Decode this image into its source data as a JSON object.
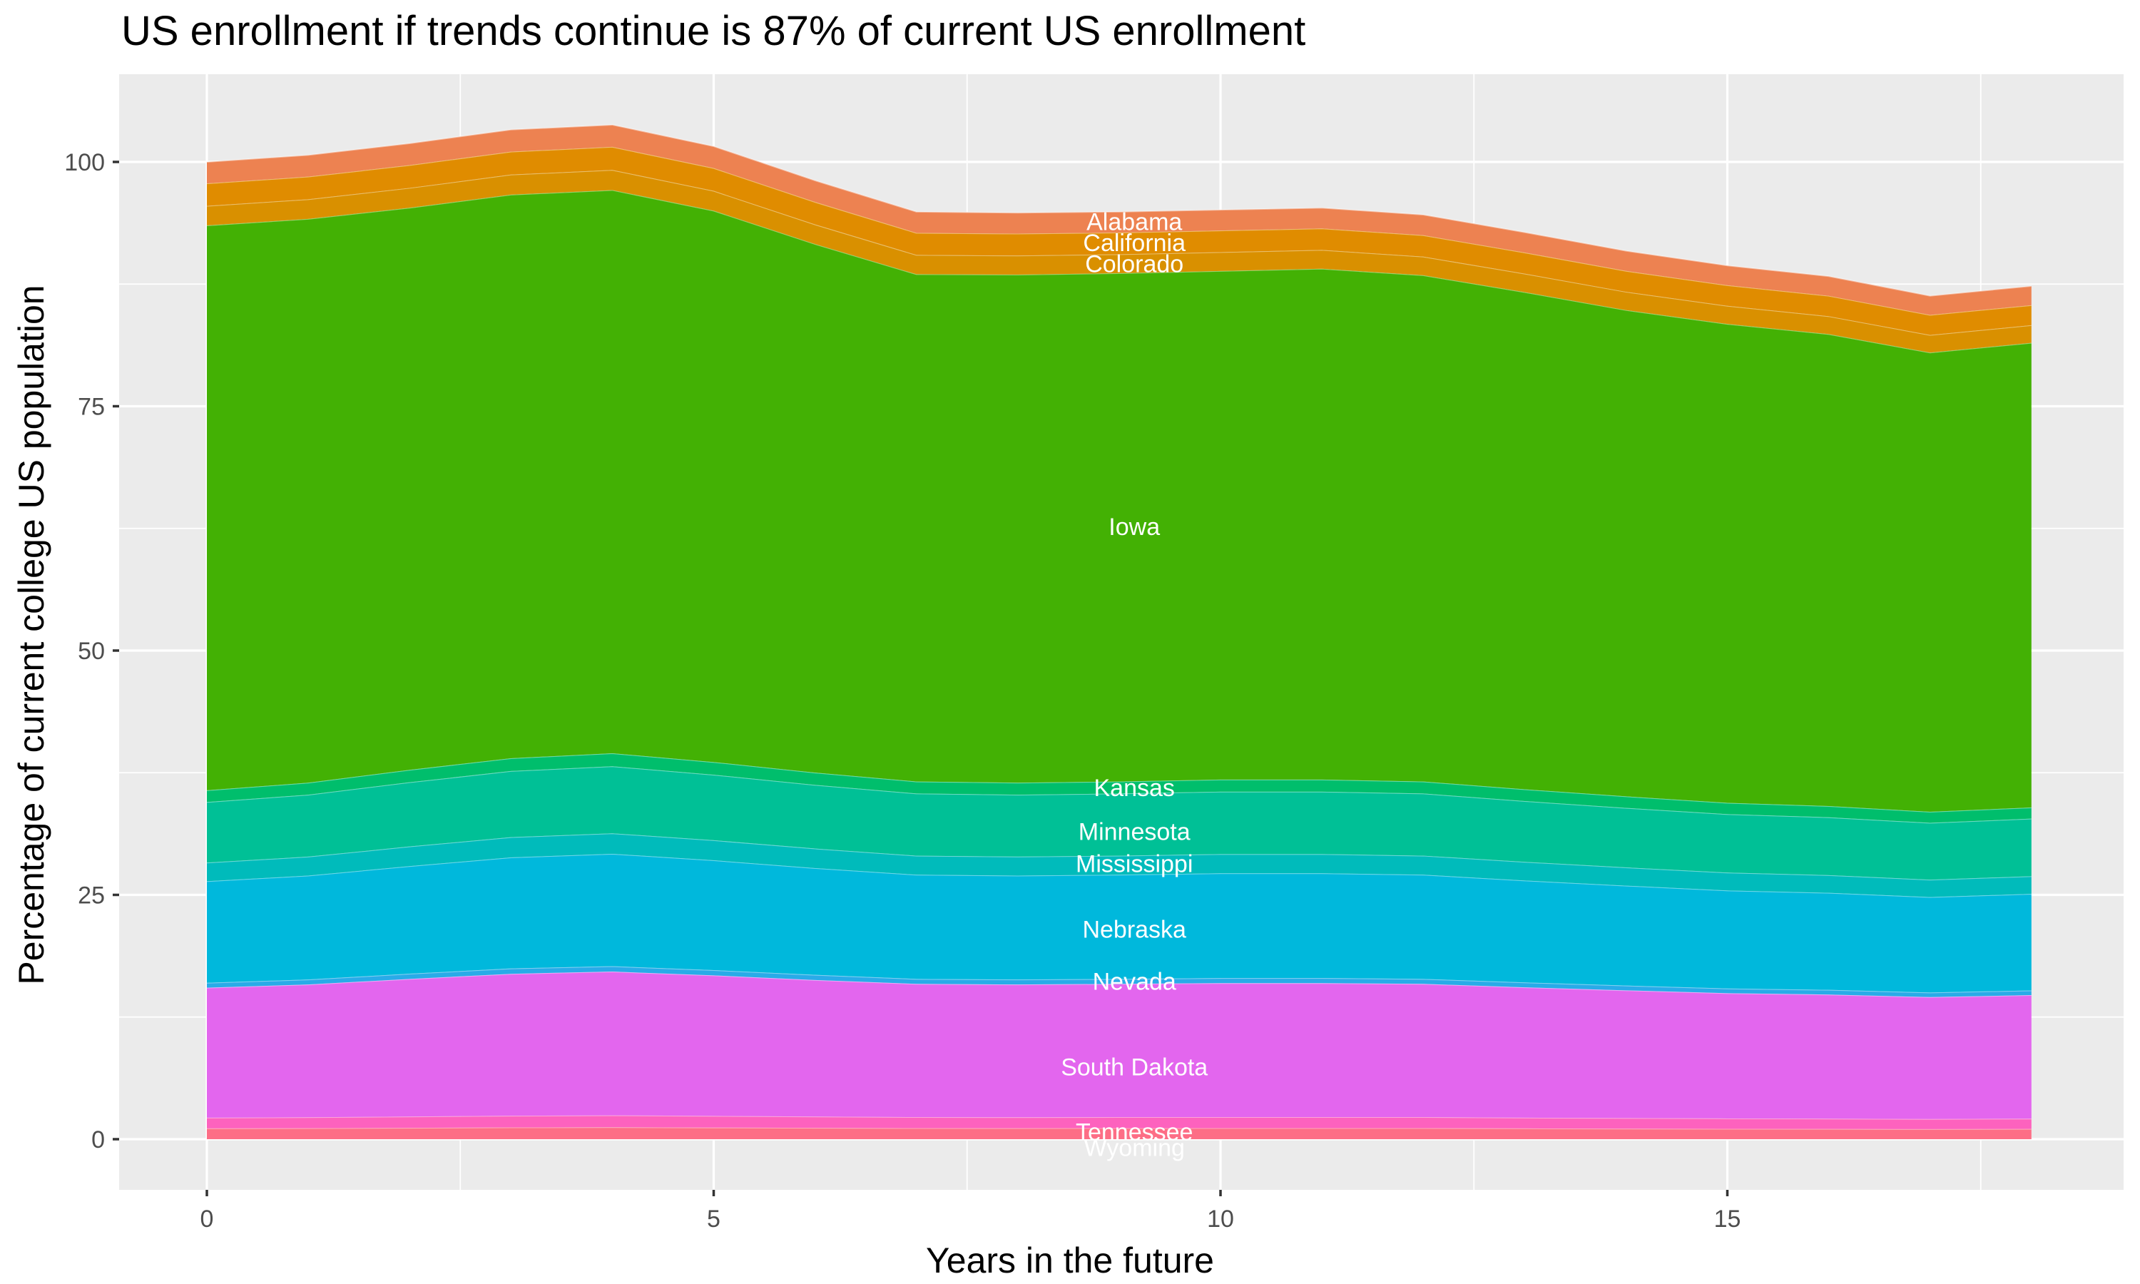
{
  "title": "US enrollment if trends continue is 87% of current US enrollment",
  "axes": {
    "x": {
      "label": "Years in the future",
      "tick_labels": [
        "0",
        "5",
        "10",
        "15"
      ],
      "ticks": [
        0,
        5,
        10,
        15
      ],
      "minor_ticks": [
        2.5,
        7.5,
        12.5,
        17.5
      ],
      "range": [
        0,
        18
      ]
    },
    "y": {
      "label": "Percentage of current college US population",
      "tick_labels": [
        "0",
        "25",
        "50",
        "75",
        "100"
      ],
      "ticks": [
        0,
        25,
        50,
        75,
        100
      ],
      "minor_ticks": [
        12.5,
        37.5,
        62.5,
        87.5
      ],
      "range": [
        -5.4,
        109.2
      ]
    }
  },
  "colors": {
    "panel_bg": "#EBEBEB",
    "grid": "#FFFFFF",
    "tick_mark": "#333333",
    "tick_label": "#4D4D4D",
    "title": "#000000",
    "band_separator": "rgba(255,255,255,0.42)",
    "area_label_text": "#FFFFFF"
  },
  "chart_data": {
    "type": "area",
    "stacked": true,
    "title": "US enrollment if trends continue is 87% of current US enrollment",
    "xlabel": "Years in the future",
    "ylabel": "Percentage of current college US population",
    "xlim": [
      0,
      18
    ],
    "ylim": [
      -5.4,
      109.2
    ],
    "grid": "on",
    "legend": "none",
    "label_x": 9.15,
    "x": [
      0,
      1,
      2,
      3,
      4,
      5,
      6,
      7,
      8,
      9,
      10,
      11,
      12,
      13,
      14,
      15,
      16,
      17,
      18
    ],
    "stack_totals": [
      100.0,
      100.7,
      101.9,
      103.3,
      103.8,
      101.6,
      98.1,
      94.9,
      94.8,
      94.9,
      95.1,
      95.3,
      94.6,
      92.8,
      90.9,
      89.4,
      88.3,
      86.3,
      87.3
    ],
    "series": [
      {
        "name": "Wyoming",
        "color": "#FD6E86",
        "label_y": -0.85,
        "values": [
          1.1,
          1.12,
          1.16,
          1.2,
          1.22,
          1.19,
          1.16,
          1.13,
          1.12,
          1.13,
          1.13,
          1.13,
          1.13,
          1.1,
          1.08,
          1.06,
          1.05,
          1.03,
          1.05
        ]
      },
      {
        "name": "Tennessee",
        "color": "#FD62BE",
        "label_y": 0.75,
        "values": [
          1.1,
          1.12,
          1.16,
          1.2,
          1.22,
          1.19,
          1.16,
          1.13,
          1.12,
          1.13,
          1.13,
          1.13,
          1.13,
          1.1,
          1.08,
          1.06,
          1.05,
          1.03,
          1.05
        ]
      },
      {
        "name": "South Dakota",
        "color": "#E366EE",
        "label_y": 7.4,
        "values": [
          13.3,
          13.59,
          14.08,
          14.52,
          14.71,
          14.38,
          13.97,
          13.63,
          13.59,
          13.63,
          13.71,
          13.71,
          13.63,
          13.34,
          13.07,
          12.82,
          12.7,
          12.48,
          12.64
        ]
      },
      {
        "name": "Nevada",
        "color": "#29ABE8",
        "label_y": 16.15,
        "values": [
          0.5,
          0.51,
          0.53,
          0.55,
          0.55,
          0.54,
          0.53,
          0.51,
          0.51,
          0.51,
          0.52,
          0.52,
          0.51,
          0.5,
          0.49,
          0.48,
          0.48,
          0.47,
          0.48
        ]
      },
      {
        "name": "Nebraska",
        "color": "#00B8DC",
        "label_y": 21.5,
        "values": [
          10.4,
          10.63,
          11.01,
          11.36,
          11.5,
          11.24,
          10.92,
          10.66,
          10.63,
          10.66,
          10.72,
          10.72,
          10.66,
          10.43,
          10.22,
          10.03,
          9.93,
          9.76,
          9.88
        ]
      },
      {
        "name": "Mississippi",
        "color": "#00BBBB",
        "label_y": 28.2,
        "values": [
          1.9,
          1.94,
          2.01,
          2.07,
          2.1,
          2.05,
          2.0,
          1.95,
          1.94,
          1.95,
          1.96,
          1.96,
          1.95,
          1.91,
          1.87,
          1.83,
          1.81,
          1.78,
          1.81
        ]
      },
      {
        "name": "Minnesota",
        "color": "#00C096",
        "label_y": 31.5,
        "values": [
          6.2,
          6.34,
          6.57,
          6.77,
          6.86,
          6.7,
          6.51,
          6.36,
          6.34,
          6.36,
          6.39,
          6.39,
          6.36,
          6.22,
          6.09,
          5.98,
          5.92,
          5.82,
          5.89
        ]
      },
      {
        "name": "Kansas",
        "color": "#00BE6C",
        "label_y": 36.0,
        "values": [
          1.2,
          1.23,
          1.27,
          1.31,
          1.33,
          1.3,
          1.26,
          1.23,
          1.23,
          1.23,
          1.24,
          1.24,
          1.23,
          1.2,
          1.18,
          1.16,
          1.15,
          1.13,
          1.14
        ]
      },
      {
        "name": "Iowa",
        "color": "#43B104",
        "label_y": 62.7,
        "values": [
          57.8,
          57.69,
          57.52,
          57.67,
          57.63,
          56.42,
          54.09,
          51.91,
          51.99,
          52.01,
          52.04,
          52.27,
          51.8,
          50.88,
          49.76,
          49.0,
          48.29,
          46.99,
          47.55
        ]
      },
      {
        "name": "Colorado",
        "color": "#D99000",
        "label_y": 89.6,
        "values": [
          2.0,
          2.01,
          2.03,
          2.05,
          2.06,
          2.03,
          2.0,
          1.97,
          1.95,
          1.94,
          1.93,
          1.92,
          1.91,
          1.89,
          1.87,
          1.85,
          1.83,
          1.8,
          1.8
        ]
      },
      {
        "name": "California",
        "color": "#E08C00",
        "label_y": 91.75,
        "values": [
          2.3,
          2.31,
          2.33,
          2.35,
          2.36,
          2.33,
          2.3,
          2.26,
          2.24,
          2.22,
          2.21,
          2.2,
          2.19,
          2.16,
          2.14,
          2.11,
          2.09,
          2.05,
          2.05
        ]
      },
      {
        "name": "Alabama",
        "color": "#ED8251",
        "label_y": 93.9,
        "values": [
          2.2,
          2.21,
          2.23,
          2.25,
          2.26,
          2.23,
          2.2,
          2.16,
          2.14,
          2.13,
          2.12,
          2.11,
          2.1,
          2.07,
          2.05,
          2.02,
          2.0,
          1.96,
          1.96
        ]
      }
    ]
  }
}
